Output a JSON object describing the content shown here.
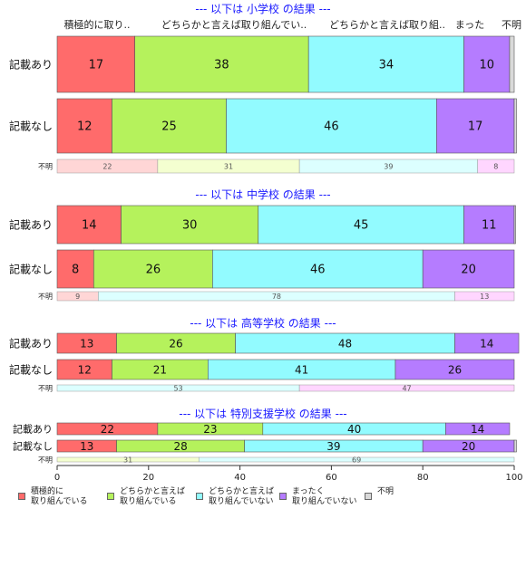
{
  "chart_data": {
    "type": "bar",
    "orientation": "horizontal",
    "stacked_percent": true,
    "xlim": [
      0,
      100
    ],
    "x_ticks": [
      "0",
      "20",
      "40",
      "60",
      "80",
      "100"
    ],
    "grid": false,
    "legend_position": "bottom",
    "top_labels": [
      "積極的に取り..",
      "どちらかと言えば取り組んでい..",
      "どちらかと言えば取り組..",
      "まった",
      "不明"
    ],
    "series": [
      {
        "name": "積極的に\n取り組んでいる",
        "color": "#ff6b6b",
        "light": "#ffd6d6"
      },
      {
        "name": "どちらかと言えば\n取り組んでいる",
        "color": "#b5f25c",
        "light": "#f4ffd0"
      },
      {
        "name": "どちらかと言えば\n取り組んでいない",
        "color": "#92fbff",
        "light": "#dcffff"
      },
      {
        "name": "まったく\n取り組んでいない",
        "color": "#b57cff",
        "light": "#ffd6ff"
      },
      {
        "name": "不明",
        "color": "#d9d9d9",
        "light": "#eeeeee"
      }
    ],
    "groups": [
      {
        "title": "--- 以下は 小学校 の結果 ---",
        "rows": [
          {
            "label": "記載あり",
            "values": [
              17,
              38,
              34,
              10,
              1
            ]
          },
          {
            "label": "記載なし",
            "values": [
              12,
              25,
              46,
              17,
              0.5
            ]
          }
        ],
        "unknown": {
          "label": "不明",
          "values": [
            22,
            31,
            39,
            8,
            0
          ]
        }
      },
      {
        "title": "--- 以下は 中学校 の結果 ---",
        "rows": [
          {
            "label": "記載あり",
            "values": [
              14,
              30,
              45,
              11,
              0.3
            ]
          },
          {
            "label": "記載なし",
            "values": [
              8,
              26,
              46,
              20,
              0
            ]
          }
        ],
        "unknown": {
          "label": "不明",
          "values": [
            9,
            0,
            78,
            13,
            0
          ]
        }
      },
      {
        "title": "--- 以下は 高等学校 の結果 ---",
        "rows": [
          {
            "label": "記載あり",
            "values": [
              13,
              26,
              48,
              14,
              0
            ]
          },
          {
            "label": "記載なし",
            "values": [
              12,
              21,
              41,
              26,
              0
            ]
          }
        ],
        "unknown": {
          "label": "不明",
          "values": [
            0,
            0,
            53,
            47,
            0
          ]
        }
      },
      {
        "title": "--- 以下は 特別支援学校 の結果 ---",
        "rows": [
          {
            "label": "記載あり",
            "values": [
              22,
              23,
              40,
              14,
              0
            ]
          },
          {
            "label": "記載なし",
            "values": [
              13,
              28,
              39,
              20,
              0.5
            ]
          }
        ],
        "unknown": {
          "label": "不明",
          "values": [
            0,
            31,
            69,
            0,
            0
          ]
        }
      }
    ]
  }
}
